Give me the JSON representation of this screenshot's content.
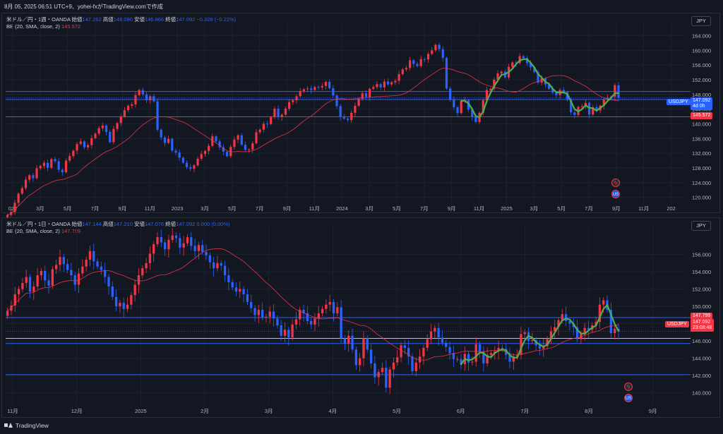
{
  "caption": "8月 05, 2025 06:51 UTC+9、yohei-fxがTradingView.comで作成",
  "brand": "TradingView",
  "colors": {
    "up": "#f23645",
    "down": "#2962ff",
    "bb": "#f23645",
    "wave": "#4caf50",
    "level": "#2962ff",
    "yellow_level": "#e8c547",
    "bg": "#131722",
    "grid": "#1e222d"
  },
  "top": {
    "symbol_line": "米ドル／円・1週・OANDA",
    "open_label": "始値",
    "open": "147.262",
    "high_label": "高値",
    "high": "148.090",
    "low_label": "安値",
    "low": "146.866",
    "close_label": "終値",
    "close": "147.092",
    "change": "−0.328 (−0.22%)",
    "bb_label": "BB (20, SMA, close, 2)",
    "bb_value": "145.572",
    "currency": "JPY",
    "tag_symbol": "USDJPY",
    "tag_price": "147.092",
    "tag_time": "4d 0h",
    "tag_bb": "145.572"
  },
  "bottom": {
    "symbol_line": "米ドル／円・1日・OANDA",
    "open_label": "始値",
    "open": "147.144",
    "high_label": "高値",
    "high": "147.210",
    "low_label": "安値",
    "low": "147.076",
    "close_label": "終値",
    "close": "147.092",
    "change": "0.000 (0.00%)",
    "bb_label": "BB (20, SMA, close, 2)",
    "bb_value": "147.799",
    "currency": "JPY",
    "tag_symbol": "USDJPY",
    "tag_price": "147.092",
    "tag_time": "23:08:48",
    "tag_bb": "147.799"
  },
  "chart_data": [
    {
      "type": "candlestick",
      "title": "米ドル／円・1週・OANDA",
      "ylim": [
        118,
        166
      ],
      "y_ticks": [
        120,
        124,
        128,
        132,
        136,
        140,
        144,
        148,
        152,
        156,
        160,
        164
      ],
      "x_ticks": [
        "022",
        "3月",
        "5月",
        "7月",
        "9月",
        "11月",
        "2023",
        "3月",
        "5月",
        "7月",
        "9月",
        "11月",
        "2024",
        "3月",
        "5月",
        "7月",
        "9月",
        "11月",
        "2025",
        "3月",
        "5月",
        "7月",
        "9月",
        "11月",
        "202"
      ],
      "levels": [
        146.6,
        148.8,
        141.9
      ],
      "closes": [
        115.2,
        116.0,
        118.5,
        121.0,
        122.5,
        124.8,
        126.0,
        125.2,
        127.9,
        128.5,
        129.4,
        128.0,
        130.4,
        129.8,
        127.5,
        126.8,
        130.0,
        131.2,
        132.7,
        134.5,
        135.2,
        133.6,
        134.2,
        136.1,
        137.3,
        138.8,
        139.5,
        137.8,
        135.0,
        138.6,
        140.2,
        142.0,
        143.7,
        144.9,
        145.3,
        147.8,
        149.2,
        148.0,
        146.4,
        147.5,
        146.1,
        138.4,
        136.3,
        134.8,
        135.9,
        132.7,
        132.2,
        130.8,
        129.4,
        128.2,
        127.8,
        128.7,
        130.5,
        131.8,
        132.6,
        134.0,
        136.6,
        135.2,
        133.6,
        132.4,
        131.2,
        133.7,
        135.7,
        136.9,
        134.3,
        132.9,
        133.0,
        134.7,
        137.7,
        138.4,
        140.0,
        139.9,
        141.8,
        144.1,
        141.8,
        142.5,
        144.1,
        145.9,
        146.4,
        147.5,
        148.9,
        149.4,
        149.6,
        149.2,
        150.0,
        149.9,
        150.3,
        151.4,
        149.7,
        147.7,
        144.8,
        141.8,
        141.4,
        141.0,
        143.0,
        144.9,
        146.8,
        148.3,
        147.3,
        149.5,
        150.0,
        150.8,
        149.9,
        151.5,
        150.7,
        151.3,
        151.7,
        153.5,
        154.8,
        155.2,
        157.3,
        156.3,
        155.7,
        157.6,
        157.5,
        159.0,
        160.0,
        161.5,
        160.3,
        157.9,
        149.6,
        146.6,
        144.5,
        142.9,
        146.2,
        146.4,
        143.9,
        141.8,
        140.5,
        143.0,
        146.4,
        149.2,
        149.5,
        152.0,
        153.7,
        154.2,
        152.6,
        155.5,
        156.7,
        156.5,
        158.4,
        157.9,
        156.5,
        155.4,
        154.1,
        151.2,
        152.4,
        150.7,
        149.5,
        148.5,
        147.8,
        149.2,
        148.6,
        146.5,
        143.1,
        142.4,
        144.6,
        144.8,
        145.7,
        142.5,
        144.5,
        143.6,
        144.9,
        146.6,
        147.1,
        147.4,
        150.5,
        147.1
      ]
    },
    {
      "type": "candlestick",
      "title": "米ドル／円・1日・OANDA",
      "ylim": [
        138.5,
        158.5
      ],
      "y_ticks": [
        140,
        142,
        144,
        146,
        148,
        150,
        152,
        154,
        156
      ],
      "x_ticks": [
        "11月",
        "12月",
        "2025",
        "2月",
        "3月",
        "4月",
        "5月",
        "6月",
        "7月",
        "8月",
        "9月"
      ],
      "levels": [
        148.7,
        146.3,
        142.1,
        145.7
      ],
      "closes": [
        149.5,
        150.1,
        151.4,
        152.0,
        152.7,
        153.4,
        151.7,
        152.3,
        153.6,
        154.1,
        153.0,
        152.4,
        154.3,
        154.8,
        155.7,
        154.9,
        154.2,
        153.6,
        152.5,
        153.8,
        154.6,
        155.4,
        156.4,
        155.2,
        154.6,
        154.2,
        153.4,
        152.3,
        151.1,
        150.0,
        150.4,
        149.7,
        150.2,
        151.3,
        152.5,
        153.6,
        154.4,
        155.0,
        156.1,
        157.2,
        158.0,
        157.4,
        156.6,
        157.7,
        158.2,
        157.9,
        156.8,
        157.3,
        158.0,
        157.0,
        156.4,
        157.1,
        156.3,
        155.9,
        155.1,
        154.4,
        155.0,
        154.7,
        153.6,
        152.8,
        152.2,
        151.7,
        152.0,
        151.4,
        150.5,
        149.8,
        149.0,
        149.6,
        148.7,
        148.8,
        149.4,
        148.6,
        147.8,
        146.6,
        147.3,
        146.4,
        147.9,
        148.5,
        149.6,
        149.2,
        148.3,
        147.9,
        148.6,
        149.2,
        149.7,
        150.2,
        150.5,
        149.2,
        149.9,
        146.3,
        145.7,
        146.6,
        145.0,
        143.2,
        144.0,
        146.3,
        145.0,
        143.4,
        141.8,
        142.4,
        142.9,
        140.6,
        142.7,
        143.5,
        144.1,
        145.5,
        145.2,
        144.2,
        142.5,
        143.5,
        144.2,
        145.2,
        146.2,
        147.1,
        147.5,
        146.4,
        145.8,
        145.3,
        144.6,
        143.9,
        143.9,
        143.3,
        144.5,
        143.5,
        143.6,
        145.6,
        144.8,
        143.4,
        144.4,
        144.6,
        144.8,
        145.2,
        145.1,
        144.4,
        143.6,
        144.2,
        144.4,
        146.8,
        147.0,
        146.0,
        146.1,
        145.5,
        145.1,
        145.4,
        146.2,
        147.1,
        147.6,
        148.4,
        149.1,
        148.3,
        148.0,
        147.6,
        146.2,
        146.8,
        147.5,
        147.3,
        147.8,
        148.2,
        150.2,
        150.7,
        149.6,
        146.9,
        147.4,
        147.1
      ]
    }
  ]
}
